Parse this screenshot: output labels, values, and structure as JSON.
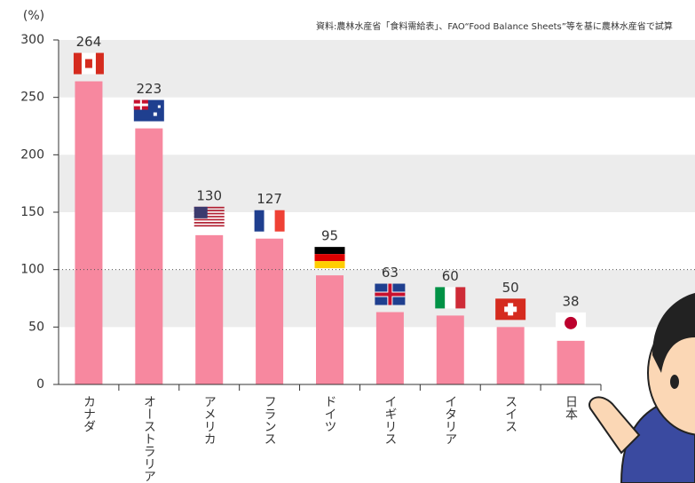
{
  "chart_data": {
    "type": "bar",
    "unit": "(%)",
    "source": "資料:農林水産省「食料需給表」、FAO“Food Balance Sheets”等を基に農林水産省で試算",
    "categories": [
      "カナダ",
      "オーストラリア",
      "アメリカ",
      "フランス",
      "ドイツ",
      "イギリス",
      "イタリア",
      "スイス",
      "日本"
    ],
    "values": [
      264,
      223,
      130,
      127,
      95,
      63,
      60,
      50,
      38
    ],
    "color": "#f7889f",
    "ylim": [
      0,
      300
    ],
    "yticks": [
      0,
      50,
      100,
      150,
      200,
      250,
      300
    ],
    "grid_bands": true,
    "reference_line": 100
  }
}
